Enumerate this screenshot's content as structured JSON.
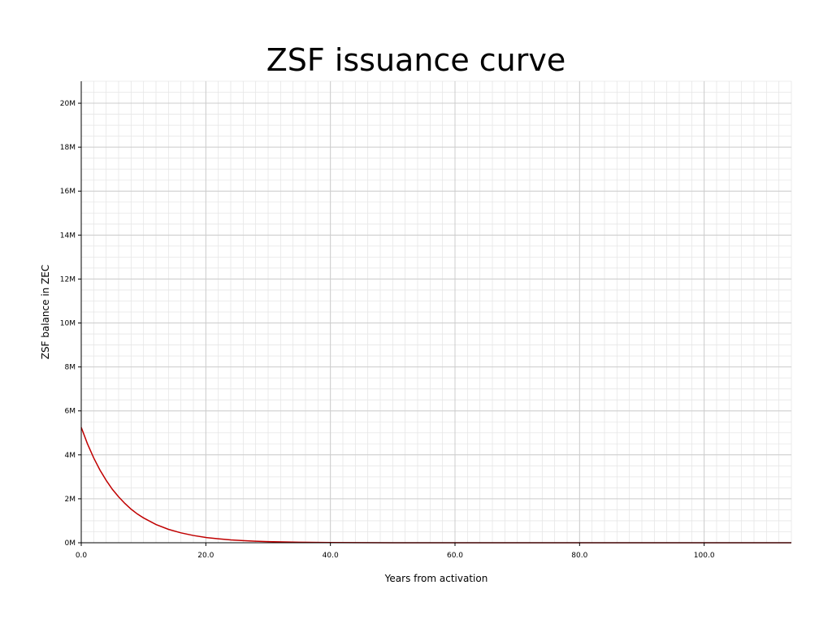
{
  "chart_data": {
    "type": "line",
    "title": "ZSF issuance curve",
    "xlabel": "Years from activation",
    "ylabel": "ZSF balance in ZEC",
    "xlim": [
      0,
      114
    ],
    "ylim": [
      0,
      21000000
    ],
    "x_ticks": [
      0,
      20,
      40,
      60,
      80,
      100
    ],
    "x_tick_labels": [
      "0.0",
      "20.0",
      "40.0",
      "60.0",
      "80.0",
      "100.0"
    ],
    "y_ticks": [
      0,
      2000000,
      4000000,
      6000000,
      8000000,
      10000000,
      12000000,
      14000000,
      16000000,
      18000000,
      20000000
    ],
    "y_tick_labels": [
      "0M",
      "2M",
      "4M",
      "6M",
      "8M",
      "10M",
      "12M",
      "14M",
      "16M",
      "18M",
      "20M"
    ],
    "grid": true,
    "minor_grid": true,
    "legend": "none",
    "series": [
      {
        "color": "#c00000",
        "x": [
          0,
          1,
          2,
          3,
          4,
          5,
          6,
          7,
          8,
          9,
          10,
          12,
          14,
          16,
          18,
          20,
          22,
          24,
          26,
          28,
          30,
          35,
          40,
          50,
          60,
          70,
          80,
          90,
          100,
          114
        ],
        "y": [
          5250000,
          4500000,
          3860000,
          3310000,
          2840000,
          2430000,
          2090000,
          1790000,
          1530000,
          1310000,
          1130000,
          830000,
          610000,
          450000,
          330000,
          240000,
          180000,
          130000,
          96000,
          70000,
          51000,
          23000,
          10000,
          2000,
          400,
          80,
          15,
          3,
          1,
          0
        ]
      }
    ]
  }
}
